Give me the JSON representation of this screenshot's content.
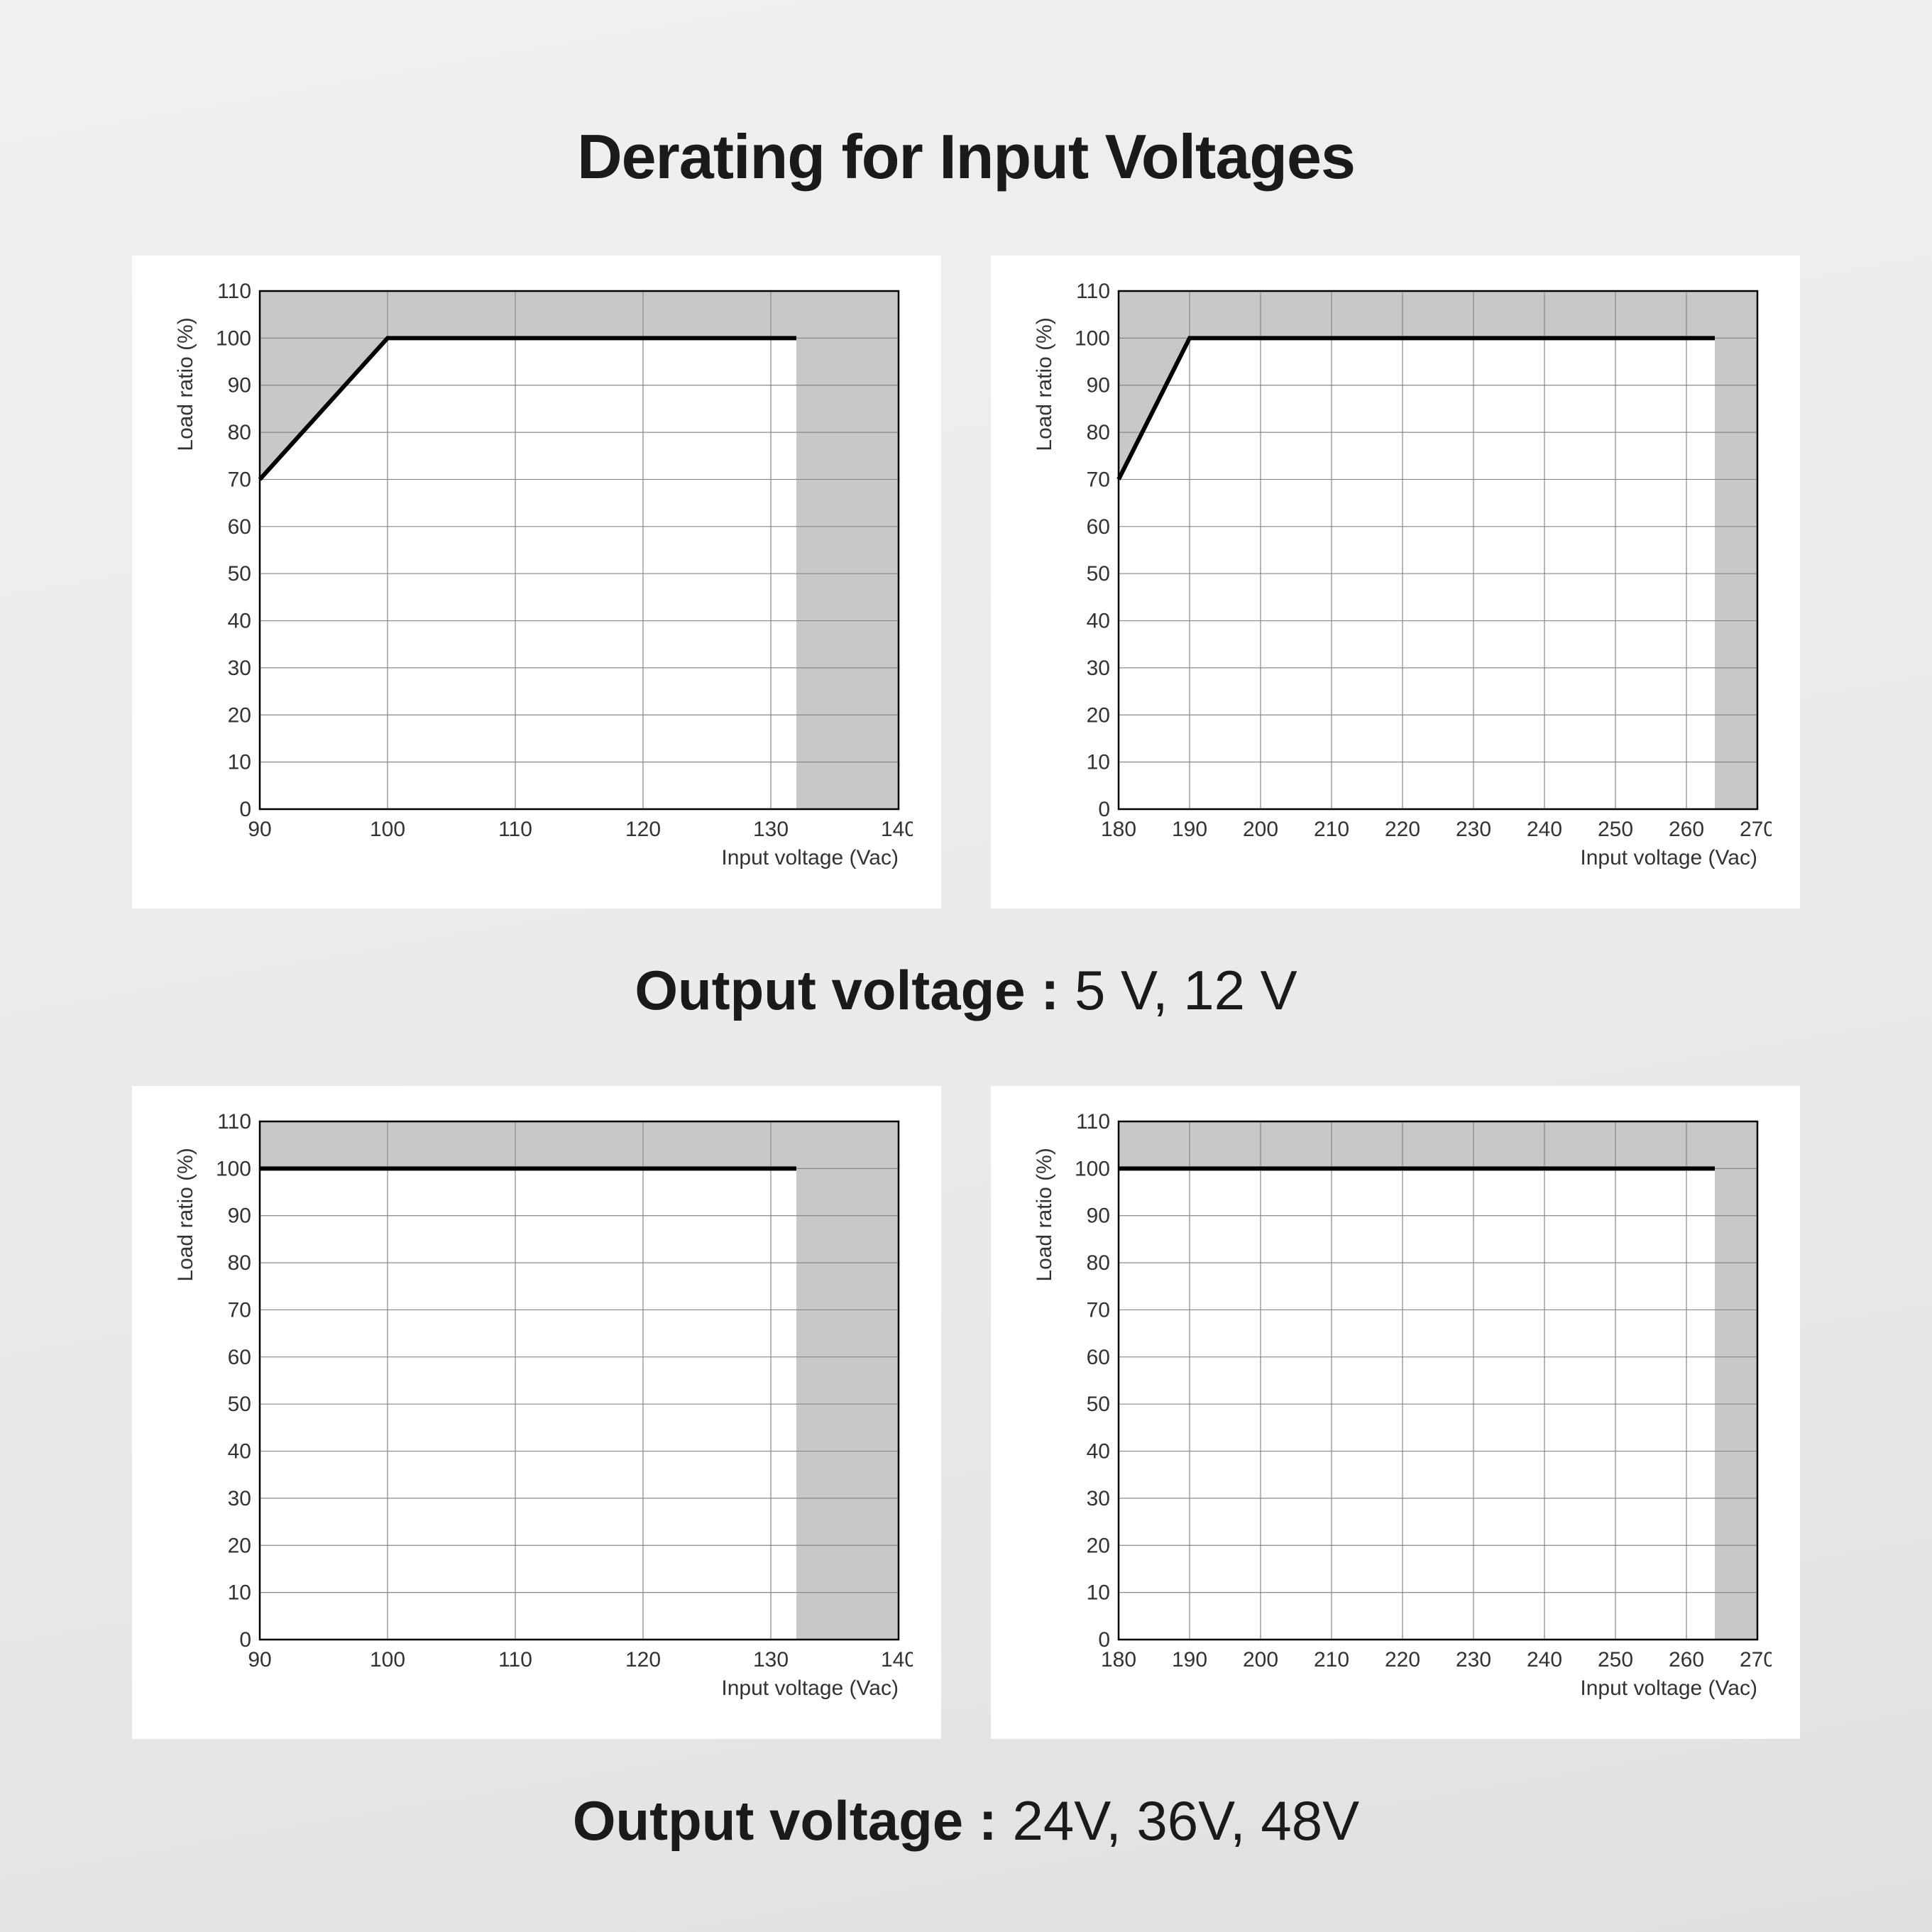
{
  "title": "Derating for Input Voltages",
  "caption1_label": "Output voltage : ",
  "caption1_value": "5 V, 12 V",
  "caption2_label": "Output voltage : ",
  "caption2_value": "24V, 36V, 48V",
  "shared": {
    "y_axis_label": "Load ratio (%)",
    "x_axis_label": "Input voltage (Vac)",
    "y_min": 0,
    "y_max": 110,
    "y_tick_step": 10,
    "y_ticks": [
      0,
      10,
      20,
      30,
      40,
      50,
      60,
      70,
      80,
      90,
      100,
      110
    ],
    "line_color": "#000000",
    "line_width": 6,
    "grid_color": "#888888",
    "grid_width": 1.2,
    "frame_color": "#000000",
    "frame_width": 2.5,
    "shade_color": "#c8c8c8",
    "bg_color": "#ffffff",
    "tick_font_size": 30,
    "axis_label_font_size": 30,
    "tick_color": "#333333"
  },
  "charts": [
    {
      "id": "chart-top-left",
      "x_min": 90,
      "x_max": 140,
      "x_tick_step": 10,
      "x_ticks": [
        90,
        100,
        110,
        120,
        130,
        140
      ],
      "curve": [
        [
          90,
          70
        ],
        [
          100,
          100
        ],
        [
          132,
          100
        ]
      ],
      "shade_right_from_x": 132
    },
    {
      "id": "chart-top-right",
      "x_min": 180,
      "x_max": 270,
      "x_tick_step": 10,
      "x_ticks": [
        180,
        190,
        200,
        210,
        220,
        230,
        240,
        250,
        260,
        270
      ],
      "curve": [
        [
          180,
          70
        ],
        [
          190,
          100
        ],
        [
          264,
          100
        ]
      ],
      "shade_right_from_x": 264
    },
    {
      "id": "chart-bottom-left",
      "x_min": 90,
      "x_max": 140,
      "x_tick_step": 10,
      "x_ticks": [
        90,
        100,
        110,
        120,
        130,
        140
      ],
      "curve": [
        [
          90,
          100
        ],
        [
          132,
          100
        ]
      ],
      "shade_right_from_x": 132
    },
    {
      "id": "chart-bottom-right",
      "x_min": 180,
      "x_max": 270,
      "x_tick_step": 10,
      "x_ticks": [
        180,
        190,
        200,
        210,
        220,
        230,
        240,
        250,
        260,
        270
      ],
      "curve": [
        [
          180,
          100
        ],
        [
          264,
          100
        ]
      ],
      "shade_right_from_x": 264
    }
  ]
}
